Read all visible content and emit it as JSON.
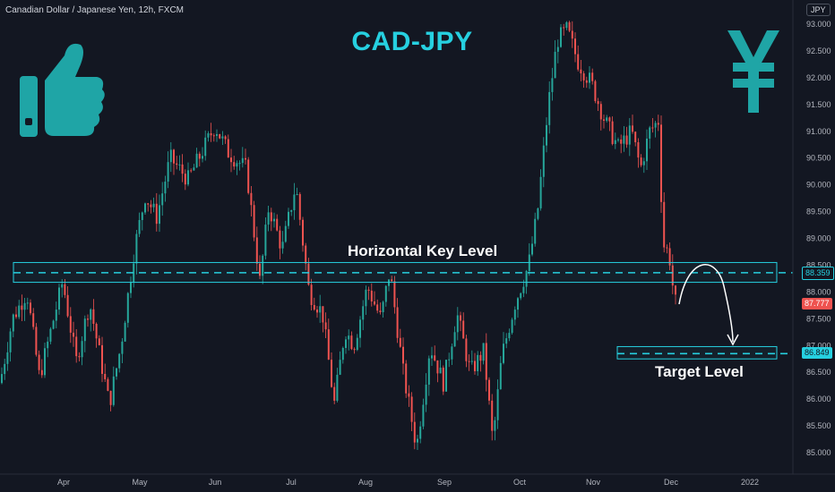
{
  "header": {
    "symbol": "Canadian Dollar / Japanese Yen, 12h, FXCM",
    "currency": "JPY"
  },
  "chart_data": {
    "type": "candlestick",
    "title": "CAD-JPY",
    "x_tick_labels": [
      "Apr",
      "May",
      "Jun",
      "Jul",
      "Aug",
      "Sep",
      "Oct",
      "Nov",
      "Dec",
      "2022"
    ],
    "y_tick_labels": [
      "93.000",
      "92.500",
      "92.000",
      "91.500",
      "91.000",
      "90.500",
      "90.000",
      "89.500",
      "89.000",
      "88.500",
      "88.000",
      "87.500",
      "87.000",
      "86.500",
      "86.000",
      "85.500",
      "85.000"
    ],
    "ylim": [
      84.85,
      93.2
    ],
    "grid": false,
    "colors": {
      "up": "#26a69a",
      "down": "#ef5350",
      "annotation": "#26d0e0",
      "background": "#131722"
    },
    "price_labels": {
      "key_level": "88.359",
      "last_price": "87.777",
      "target": "86.849"
    },
    "annotations": {
      "key_level_label": "Horizontal Key Level",
      "target_label": "Target Level"
    },
    "key_level_zone": [
      88.18,
      88.55
    ],
    "target_zone": [
      86.75,
      86.98
    ],
    "anchors": [
      [
        0,
        86.3
      ],
      [
        14,
        87.5
      ],
      [
        30,
        88.0
      ],
      [
        44,
        86.4
      ],
      [
        70,
        88.2
      ],
      [
        85,
        86.7
      ],
      [
        100,
        87.8
      ],
      [
        122,
        85.9
      ],
      [
        135,
        87.0
      ],
      [
        150,
        88.8
      ],
      [
        162,
        89.8
      ],
      [
        175,
        89.4
      ],
      [
        190,
        90.5
      ],
      [
        210,
        90.1
      ],
      [
        240,
        91.1
      ],
      [
        255,
        90.6
      ],
      [
        275,
        90.3
      ],
      [
        290,
        88.2
      ],
      [
        300,
        89.6
      ],
      [
        315,
        88.8
      ],
      [
        330,
        90.0
      ],
      [
        345,
        88.0
      ],
      [
        360,
        87.6
      ],
      [
        373,
        85.9
      ],
      [
        385,
        87.3
      ],
      [
        395,
        87.0
      ],
      [
        410,
        88.1
      ],
      [
        425,
        87.5
      ],
      [
        435,
        88.4
      ],
      [
        450,
        86.5
      ],
      [
        465,
        85.1
      ],
      [
        480,
        87.0
      ],
      [
        495,
        86.3
      ],
      [
        510,
        87.6
      ],
      [
        525,
        86.5
      ],
      [
        540,
        86.9
      ],
      [
        550,
        85.2
      ],
      [
        560,
        86.8
      ],
      [
        575,
        87.8
      ],
      [
        590,
        88.5
      ],
      [
        600,
        89.5
      ],
      [
        612,
        91.5
      ],
      [
        622,
        92.7
      ],
      [
        633,
        92.9
      ],
      [
        645,
        92.3
      ],
      [
        660,
        91.9
      ],
      [
        675,
        91.2
      ],
      [
        690,
        90.7
      ],
      [
        705,
        91.0
      ],
      [
        715,
        90.3
      ],
      [
        725,
        91.0
      ],
      [
        735,
        91.2
      ],
      [
        740,
        88.9
      ],
      [
        747,
        88.7
      ],
      [
        753,
        87.8
      ],
      [
        757,
        87.8
      ]
    ]
  }
}
